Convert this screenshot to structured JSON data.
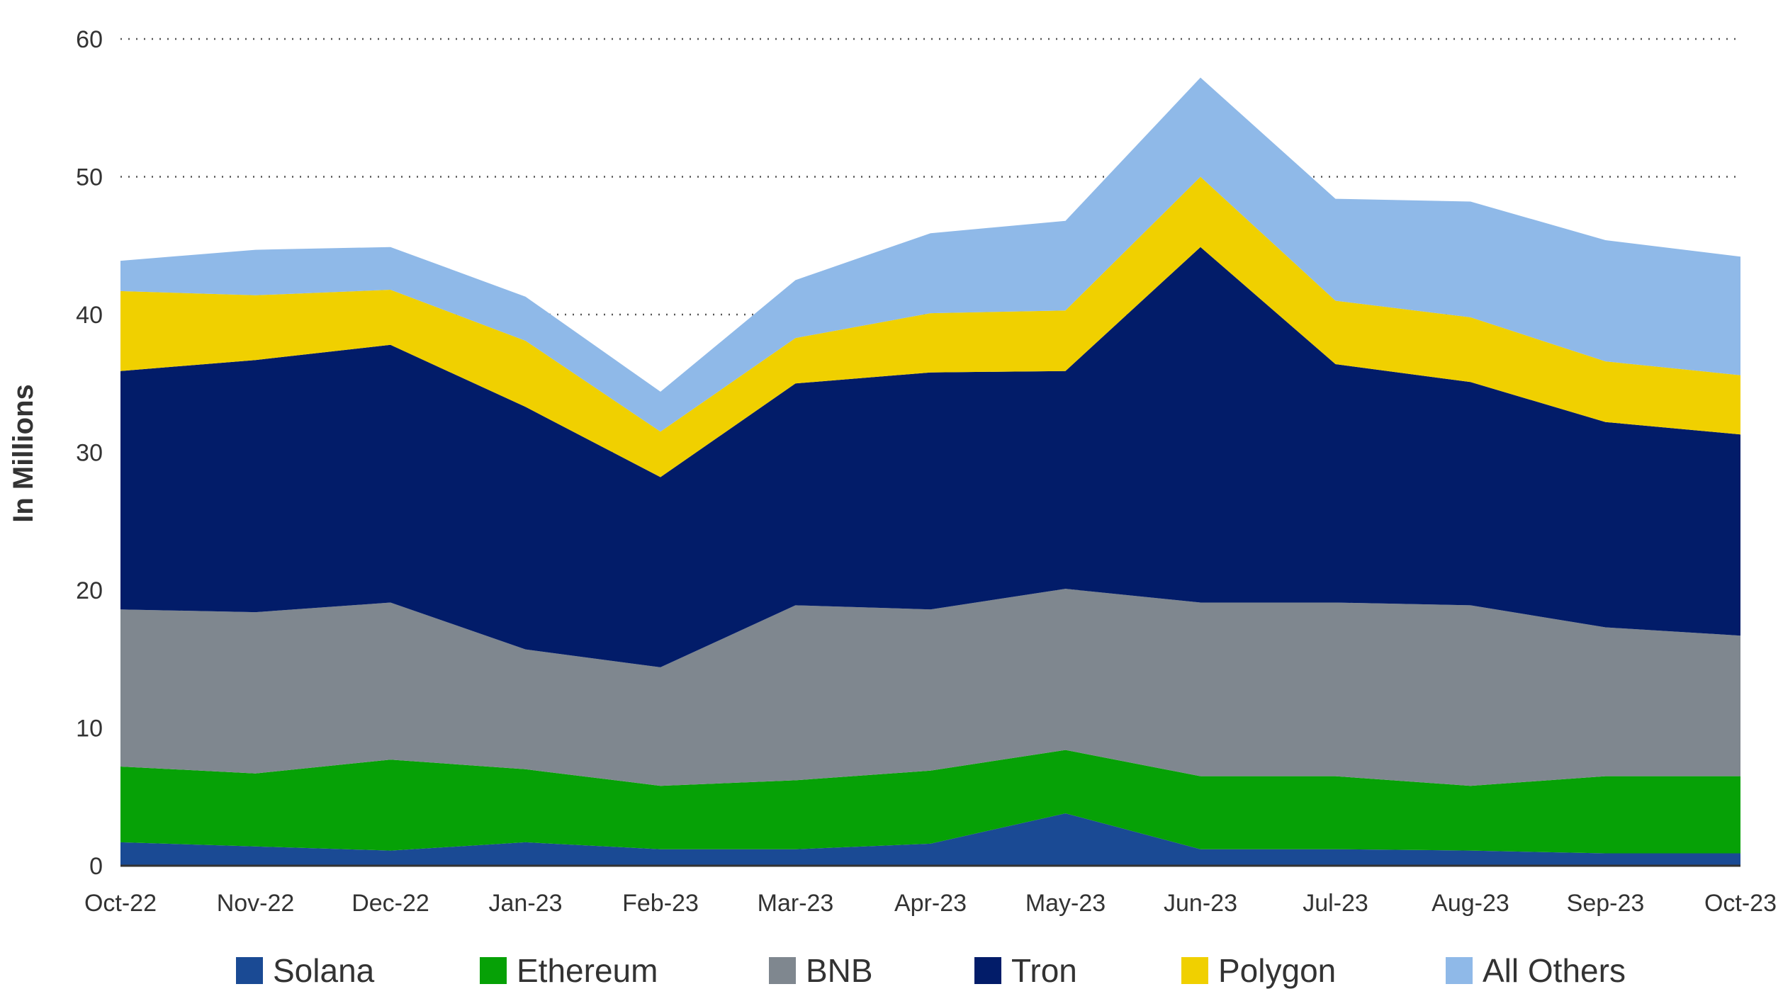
{
  "chart_data": {
    "type": "area",
    "stacked": true,
    "ylabel": "In Millions",
    "xlabel": "",
    "ylim": [
      0,
      60
    ],
    "yticks": [
      "0",
      "10",
      "20",
      "30",
      "40",
      "50",
      "60"
    ],
    "grid": "horizontal dotted",
    "legend_position": "bottom",
    "categories": [
      "Oct-22",
      "Nov-22",
      "Dec-22",
      "Jan-23",
      "Feb-23",
      "Mar-23",
      "Apr-23",
      "May-23",
      "Jun-23",
      "Jul-23",
      "Aug-23",
      "Sep-23",
      "Oct-23"
    ],
    "series": [
      {
        "name": "Solana",
        "color": "#1a4a94",
        "values": [
          1.7,
          1.4,
          1.1,
          1.7,
          1.2,
          1.2,
          1.6,
          3.8,
          1.2,
          1.2,
          1.1,
          0.9,
          0.9
        ]
      },
      {
        "name": "Ethereum",
        "color": "#06a106",
        "values": [
          5.5,
          5.3,
          6.6,
          5.3,
          4.6,
          5.0,
          5.3,
          4.6,
          5.3,
          5.3,
          4.7,
          5.6,
          5.6
        ]
      },
      {
        "name": "BNB",
        "color": "#7f878f",
        "values": [
          11.4,
          11.7,
          11.4,
          8.7,
          8.6,
          12.7,
          11.7,
          11.7,
          12.6,
          12.6,
          13.1,
          10.8,
          10.2
        ]
      },
      {
        "name": "Tron",
        "color": "#021c69",
        "values": [
          17.3,
          18.3,
          18.7,
          17.6,
          13.8,
          16.1,
          17.2,
          15.8,
          25.8,
          17.3,
          16.2,
          14.9,
          14.6
        ]
      },
      {
        "name": "Polygon",
        "color": "#f0d000",
        "values": [
          5.8,
          4.7,
          4.0,
          4.8,
          3.3,
          3.3,
          4.3,
          4.4,
          5.1,
          4.6,
          4.7,
          4.4,
          4.3
        ]
      },
      {
        "name": "All Others",
        "color": "#8fb9e8",
        "values": [
          2.2,
          3.3,
          3.1,
          3.2,
          2.9,
          4.2,
          5.8,
          6.5,
          7.2,
          7.4,
          8.4,
          8.8,
          8.6
        ]
      }
    ]
  }
}
